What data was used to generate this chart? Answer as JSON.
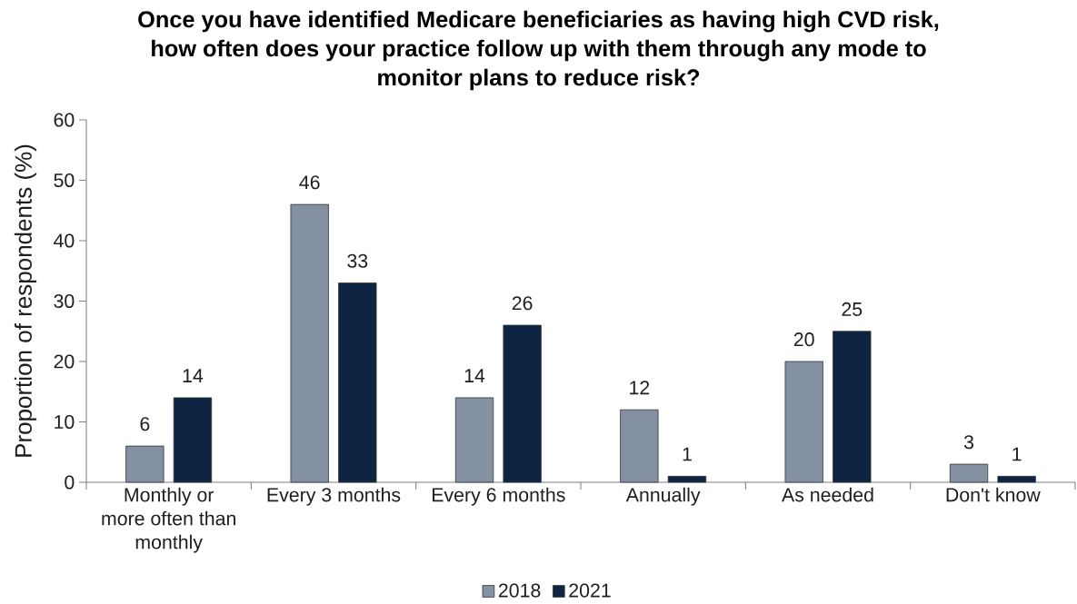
{
  "chart_data": {
    "type": "bar",
    "title": "Once you have identified Medicare beneficiaries as having high CVD risk, how often does your practice follow up with them through any mode to monitor plans to reduce risk?",
    "ylabel": "Proportion of respondents (%)",
    "categories": [
      "Monthly or more often than monthly",
      "Every 3 months",
      "Every 6 months",
      "Annually",
      "As needed",
      "Don't know"
    ],
    "series": [
      {
        "name": "2018",
        "color": "#8391a2",
        "values": [
          6,
          46,
          14,
          12,
          20,
          3
        ]
      },
      {
        "name": "2021",
        "color": "#0d2543",
        "values": [
          14,
          33,
          26,
          1,
          25,
          1
        ]
      }
    ],
    "ylim": [
      0,
      60
    ],
    "yticks": [
      0,
      10,
      20,
      30,
      40,
      50,
      60
    ],
    "data_labels": true,
    "legend": "bottom",
    "grid": false
  }
}
